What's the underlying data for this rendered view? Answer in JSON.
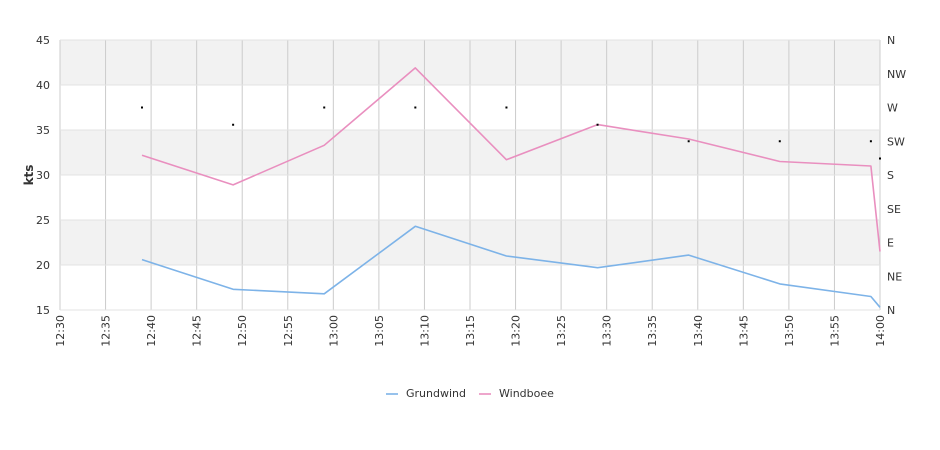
{
  "chart_data": {
    "type": "line",
    "ylabel": "kts",
    "ylim": [
      15,
      45
    ],
    "yticks": [
      "15",
      "20",
      "25",
      "30",
      "35",
      "40",
      "45"
    ],
    "x_range": [
      "12:30",
      "14:00"
    ],
    "xticks": [
      "12:30",
      "12:35",
      "12:40",
      "12:45",
      "12:50",
      "12:55",
      "13:00",
      "13:05",
      "13:10",
      "13:15",
      "13:20",
      "13:25",
      "13:30",
      "13:35",
      "13:40",
      "13:45",
      "13:50",
      "13:55",
      "14:00"
    ],
    "direction_axis": {
      "labels": [
        "N",
        "NE",
        "E",
        "SE",
        "S",
        "SW",
        "W",
        "NW",
        "N"
      ],
      "range_degrees": [
        0,
        360
      ]
    },
    "grid": true,
    "alternating_bands": true,
    "legend_position": "bottom-center",
    "series": [
      {
        "name": "Grundwind",
        "color": "#7db3e8",
        "x": [
          "12:39",
          "12:49",
          "12:59",
          "13:09",
          "13:19",
          "13:29",
          "13:39",
          "13:49",
          "13:59",
          "14:00"
        ],
        "values": [
          20.6,
          17.3,
          16.8,
          24.3,
          21.0,
          19.7,
          21.1,
          17.9,
          16.5,
          15.3
        ]
      },
      {
        "name": "Windboee",
        "color": "#e98fbf",
        "x": [
          "12:39",
          "12:49",
          "12:59",
          "13:09",
          "13:19",
          "13:29",
          "13:39",
          "13:49",
          "13:59",
          "14:00"
        ],
        "values": [
          32.2,
          28.9,
          33.3,
          41.9,
          31.7,
          35.6,
          34.0,
          31.5,
          31.0,
          21.5
        ]
      }
    ],
    "direction_points": {
      "name": "direction",
      "x": [
        "12:39",
        "12:49",
        "12:59",
        "13:09",
        "13:19",
        "13:29",
        "13:39",
        "13:49",
        "13:59",
        "14:00"
      ],
      "degrees": [
        270,
        247,
        270,
        270,
        270,
        247,
        225,
        225,
        225,
        202
      ]
    }
  }
}
